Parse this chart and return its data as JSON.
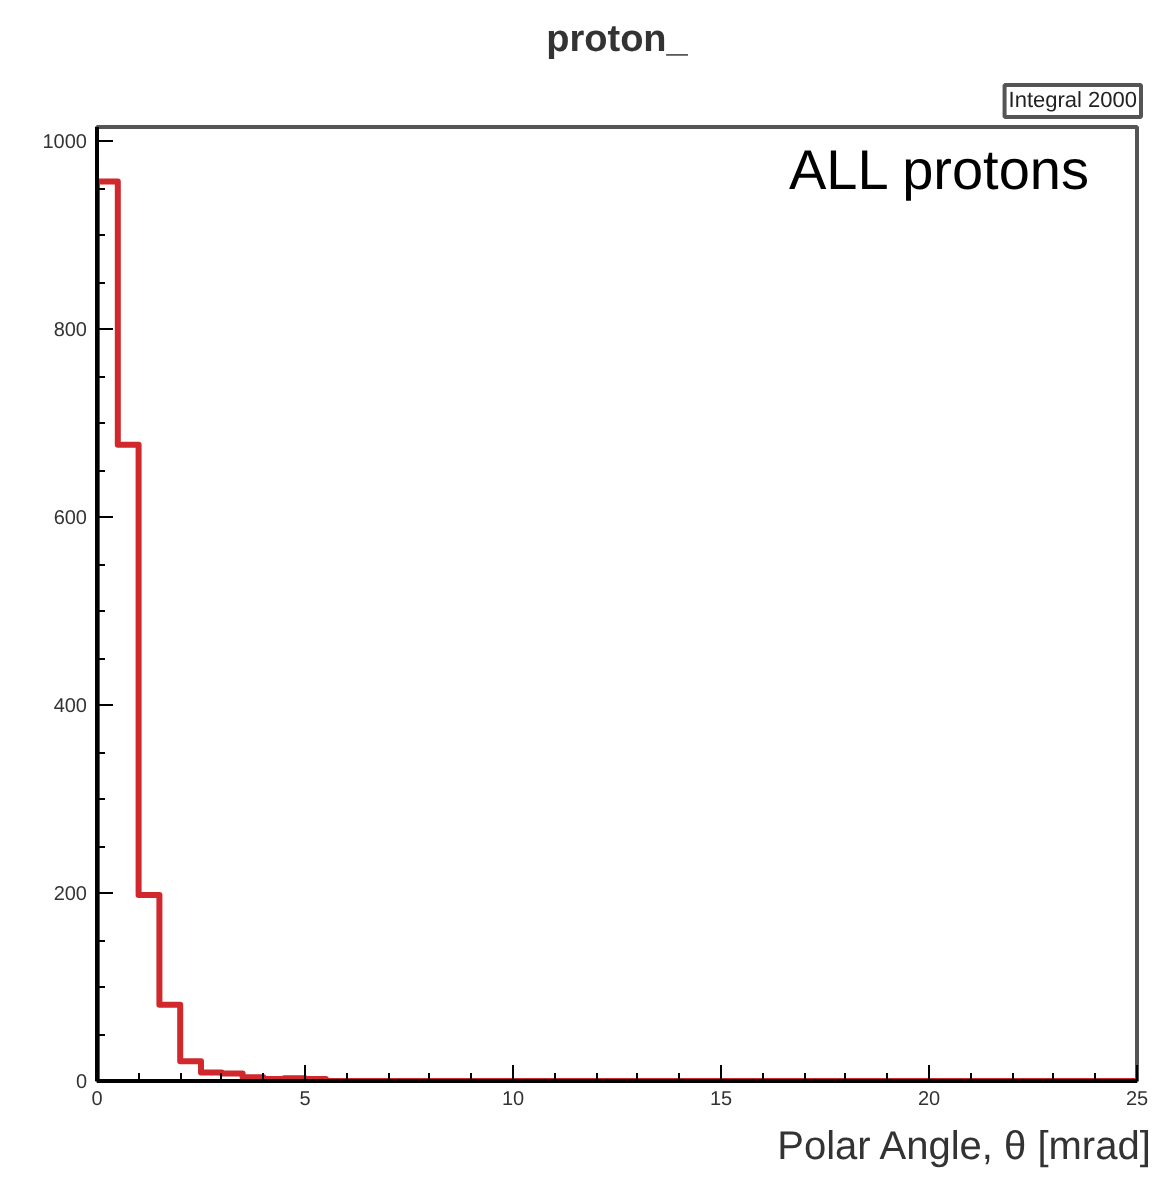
{
  "chart_data": {
    "type": "histogram",
    "title": "proton_",
    "xlabel": "Polar Angle, θ [mrad]",
    "annotations": [
      "ALL protons",
      "Integral 2000"
    ],
    "bins": [
      0,
      0.5,
      1,
      1.5,
      2,
      2.5,
      3,
      3.5,
      4,
      4.5,
      5,
      5.5,
      6,
      6.5,
      7,
      7.5,
      8,
      8.5,
      9,
      9.5,
      10,
      10.5,
      11,
      11.5,
      12,
      12.5,
      13,
      13.5,
      14,
      14.5,
      15,
      15.5,
      16,
      16.5,
      17,
      17.5,
      18,
      18.5,
      19,
      19.5,
      20,
      20.5,
      21,
      21.5,
      22,
      22.5,
      23,
      23.5,
      24,
      24.5,
      25
    ],
    "values": [
      957,
      677,
      198,
      81,
      21,
      9,
      8,
      4,
      2,
      3,
      2,
      0,
      0,
      0,
      0,
      0,
      0,
      0,
      0,
      0,
      0,
      0,
      0,
      0,
      0,
      0,
      0,
      0,
      0,
      0,
      0,
      0,
      0,
      0,
      0,
      0,
      0,
      0,
      0,
      0,
      0,
      0,
      0,
      0,
      0,
      0,
      0,
      0,
      0,
      0
    ],
    "color": "#d0282c",
    "xlim": [
      0,
      25
    ],
    "ylim": [
      0,
      1015
    ],
    "xticks": [
      0,
      5,
      10,
      15,
      20,
      25
    ],
    "yticks": [
      0,
      200,
      400,
      600,
      800,
      1000
    ],
    "grid": false
  }
}
